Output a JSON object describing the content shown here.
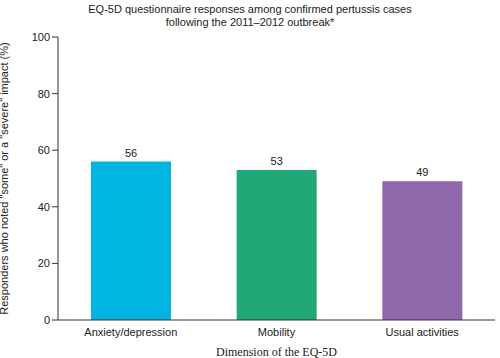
{
  "chart_data": {
    "type": "bar",
    "title": "EQ-5D questionnaire responses among confirmed pertussis cases following the 2011–2012 outbreak*",
    "x_label": "Dimension of the EQ-5D",
    "y_label": "Responders who noted \"some\" or a \"severe\" impact (%)",
    "categories": [
      "Anxiety/depression",
      "Mobility",
      "Usual activities"
    ],
    "values": [
      56,
      53,
      49
    ],
    "colors": [
      "#00b5e2",
      "#21a876",
      "#8f68ab"
    ],
    "ylim": [
      0,
      100
    ],
    "yticks": [
      0,
      20,
      40,
      60,
      80,
      100
    ],
    "grid": false,
    "data_labels": true
  }
}
